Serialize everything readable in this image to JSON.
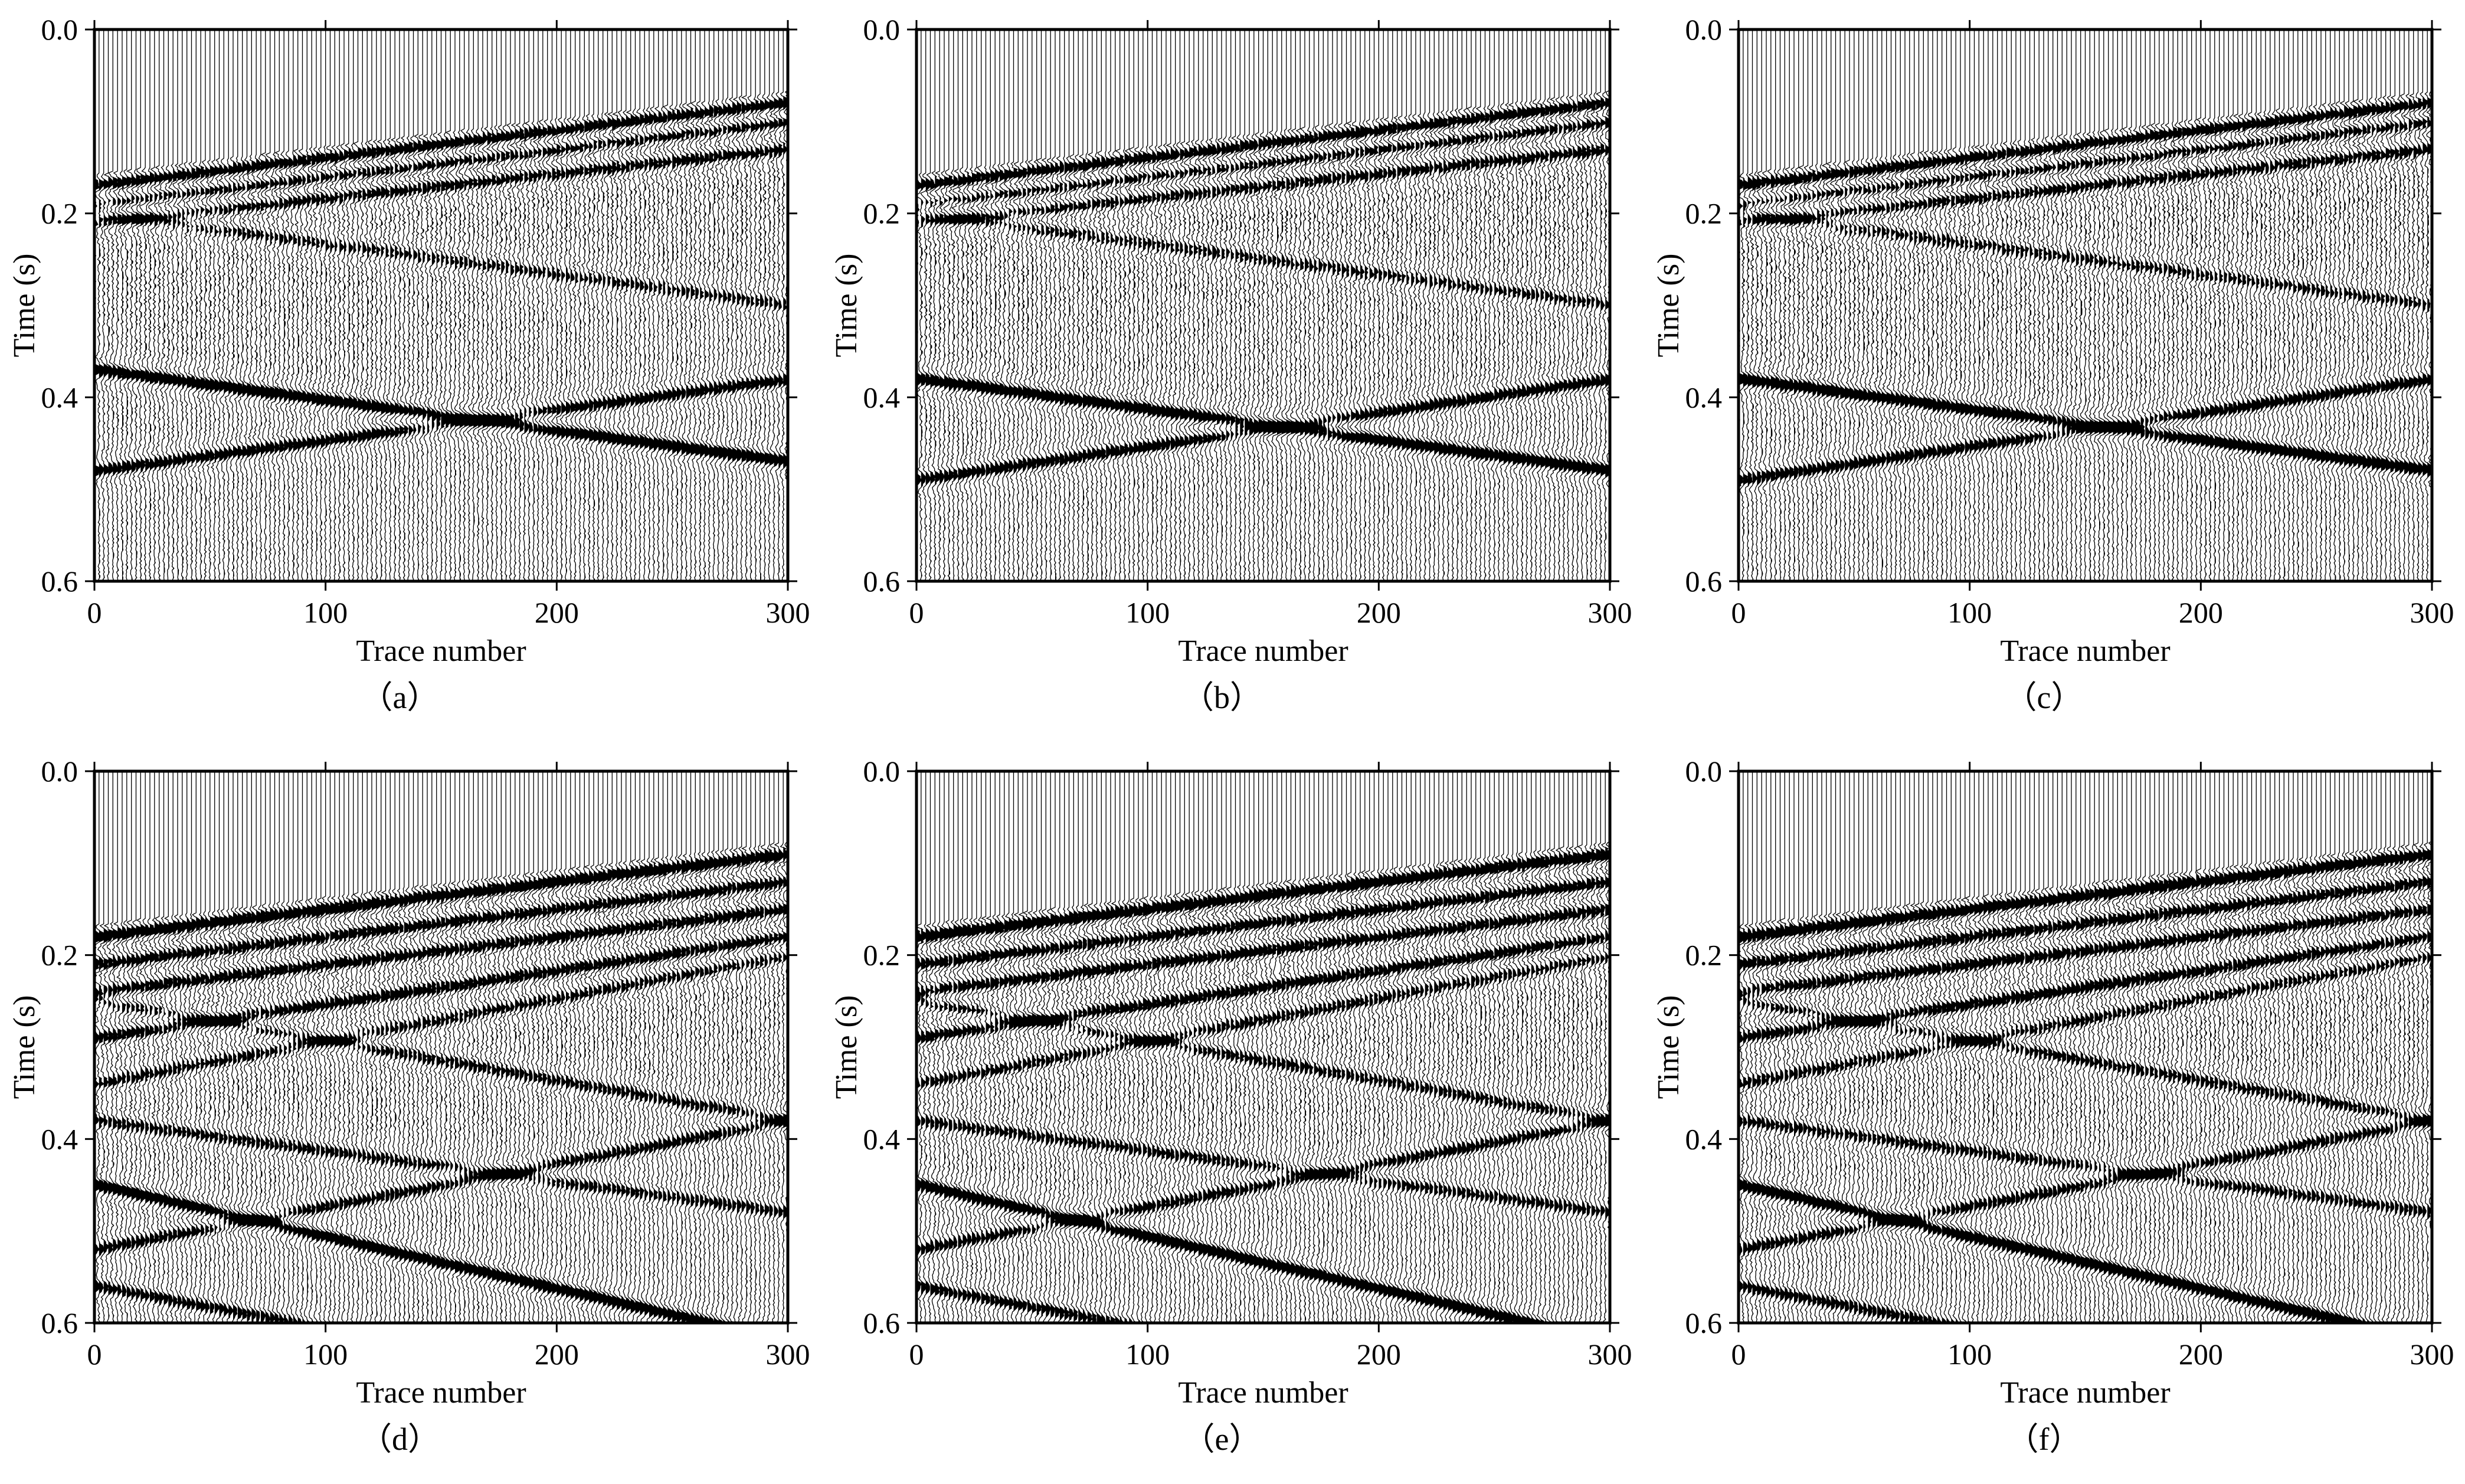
{
  "chart_data": [
    {
      "type": "seismic-wiggle",
      "caption": "（a）",
      "xlabel": "Trace number",
      "ylabel": "Time (s)",
      "xlim": [
        0,
        300
      ],
      "ylim": [
        0.6,
        0.0
      ],
      "xticks": [
        "0",
        "100",
        "200",
        "300"
      ],
      "yticks": [
        "0.0",
        "0.2",
        "0.4",
        "0.6"
      ],
      "num_traces": 301,
      "events": [
        {
          "name": "e1",
          "t0": 0.17,
          "t300": 0.08,
          "strength": 1.0
        },
        {
          "name": "e2",
          "t0": 0.19,
          "t300": 0.1,
          "strength": 0.8
        },
        {
          "name": "e3",
          "t0": 0.21,
          "t300": 0.13,
          "strength": 0.7
        },
        {
          "name": "e4",
          "t0": 0.2,
          "t300": 0.3,
          "strength": 0.5
        },
        {
          "name": "e5",
          "t0": 0.37,
          "t300": 0.47,
          "strength": 1.0
        },
        {
          "name": "e6",
          "t0": 0.48,
          "t300": 0.38,
          "strength": 0.8
        }
      ]
    },
    {
      "type": "seismic-wiggle",
      "caption": "（b）",
      "xlabel": "Trace number",
      "ylabel": "Time (s)",
      "xlim": [
        0,
        300
      ],
      "ylim": [
        0.6,
        0.0
      ],
      "xticks": [
        "0",
        "100",
        "200",
        "300"
      ],
      "yticks": [
        "0.0",
        "0.2",
        "0.4",
        "0.6"
      ],
      "num_traces": 301,
      "events": [
        {
          "name": "e1",
          "t0": 0.17,
          "t300": 0.08,
          "strength": 1.0
        },
        {
          "name": "e2",
          "t0": 0.19,
          "t300": 0.1,
          "strength": 0.8
        },
        {
          "name": "e3",
          "t0": 0.21,
          "t300": 0.13,
          "strength": 0.7
        },
        {
          "name": "e4",
          "t0": 0.2,
          "t300": 0.3,
          "strength": 0.5
        },
        {
          "name": "e5",
          "t0": 0.38,
          "t300": 0.48,
          "strength": 1.0
        },
        {
          "name": "e6",
          "t0": 0.49,
          "t300": 0.38,
          "strength": 0.8
        }
      ]
    },
    {
      "type": "seismic-wiggle",
      "caption": "（c）",
      "xlabel": "Trace number",
      "ylabel": "Time (s)",
      "xlim": [
        0,
        300
      ],
      "ylim": [
        0.6,
        0.0
      ],
      "xticks": [
        "0",
        "100",
        "200",
        "300"
      ],
      "yticks": [
        "0.0",
        "0.2",
        "0.4",
        "0.6"
      ],
      "num_traces": 301,
      "events": [
        {
          "name": "e1",
          "t0": 0.17,
          "t300": 0.08,
          "strength": 1.0
        },
        {
          "name": "e2",
          "t0": 0.19,
          "t300": 0.1,
          "strength": 0.8
        },
        {
          "name": "e3",
          "t0": 0.21,
          "t300": 0.13,
          "strength": 0.7
        },
        {
          "name": "e4",
          "t0": 0.2,
          "t300": 0.3,
          "strength": 0.5
        },
        {
          "name": "e5",
          "t0": 0.38,
          "t300": 0.48,
          "strength": 1.0
        },
        {
          "name": "e6",
          "t0": 0.49,
          "t300": 0.38,
          "strength": 0.8
        }
      ]
    },
    {
      "type": "seismic-wiggle",
      "caption": "（d）",
      "xlabel": "Trace number",
      "ylabel": "Time (s)",
      "xlim": [
        0,
        300
      ],
      "ylim": [
        0.6,
        0.0
      ],
      "xticks": [
        "0",
        "100",
        "200",
        "300"
      ],
      "yticks": [
        "0.0",
        "0.2",
        "0.4",
        "0.6"
      ],
      "num_traces": 301,
      "events": [
        {
          "name": "e1",
          "t0": 0.18,
          "t300": 0.09,
          "strength": 1.0
        },
        {
          "name": "e2",
          "t0": 0.21,
          "t300": 0.12,
          "strength": 0.8
        },
        {
          "name": "e3",
          "t0": 0.24,
          "t300": 0.15,
          "strength": 0.8
        },
        {
          "name": "e4",
          "t0": 0.29,
          "t300": 0.18,
          "strength": 0.8
        },
        {
          "name": "e5",
          "t0": 0.25,
          "t300": 0.38,
          "strength": 0.6
        },
        {
          "name": "e6",
          "t0": 0.34,
          "t300": 0.2,
          "strength": 0.6
        },
        {
          "name": "e7",
          "t0": 0.38,
          "t300": 0.48,
          "strength": 0.6
        },
        {
          "name": "e8",
          "t0": 0.45,
          "t300": 0.62,
          "strength": 1.0
        },
        {
          "name": "e9",
          "t0": 0.52,
          "t300": 0.38,
          "strength": 0.7
        },
        {
          "name": "e10",
          "t0": 0.56,
          "t300": 0.7,
          "strength": 0.7
        }
      ]
    },
    {
      "type": "seismic-wiggle",
      "caption": "（e）",
      "xlabel": "Trace number",
      "ylabel": "Time (s)",
      "xlim": [
        0,
        300
      ],
      "ylim": [
        0.6,
        0.0
      ],
      "xticks": [
        "0",
        "100",
        "200",
        "300"
      ],
      "yticks": [
        "0.0",
        "0.2",
        "0.4",
        "0.6"
      ],
      "num_traces": 301,
      "events": [
        {
          "name": "e1",
          "t0": 0.18,
          "t300": 0.09,
          "strength": 1.0
        },
        {
          "name": "e2",
          "t0": 0.21,
          "t300": 0.12,
          "strength": 0.8
        },
        {
          "name": "e3",
          "t0": 0.24,
          "t300": 0.15,
          "strength": 0.8
        },
        {
          "name": "e4",
          "t0": 0.29,
          "t300": 0.18,
          "strength": 0.8
        },
        {
          "name": "e5",
          "t0": 0.25,
          "t300": 0.38,
          "strength": 0.6
        },
        {
          "name": "e6",
          "t0": 0.34,
          "t300": 0.2,
          "strength": 0.6
        },
        {
          "name": "e7",
          "t0": 0.38,
          "t300": 0.48,
          "strength": 0.6
        },
        {
          "name": "e8",
          "t0": 0.45,
          "t300": 0.62,
          "strength": 1.0
        },
        {
          "name": "e9",
          "t0": 0.52,
          "t300": 0.38,
          "strength": 0.7
        },
        {
          "name": "e10",
          "t0": 0.56,
          "t300": 0.7,
          "strength": 0.7
        }
      ]
    },
    {
      "type": "seismic-wiggle",
      "caption": "（f）",
      "xlabel": "Trace number",
      "ylabel": "Time (s)",
      "xlim": [
        0,
        300
      ],
      "ylim": [
        0.6,
        0.0
      ],
      "xticks": [
        "0",
        "100",
        "200",
        "300"
      ],
      "yticks": [
        "0.0",
        "0.2",
        "0.4",
        "0.6"
      ],
      "num_traces": 301,
      "events": [
        {
          "name": "e1",
          "t0": 0.18,
          "t300": 0.09,
          "strength": 1.0
        },
        {
          "name": "e2",
          "t0": 0.21,
          "t300": 0.12,
          "strength": 0.8
        },
        {
          "name": "e3",
          "t0": 0.24,
          "t300": 0.15,
          "strength": 0.8
        },
        {
          "name": "e4",
          "t0": 0.29,
          "t300": 0.18,
          "strength": 0.8
        },
        {
          "name": "e5",
          "t0": 0.25,
          "t300": 0.38,
          "strength": 0.6
        },
        {
          "name": "e6",
          "t0": 0.34,
          "t300": 0.2,
          "strength": 0.6
        },
        {
          "name": "e7",
          "t0": 0.38,
          "t300": 0.48,
          "strength": 0.6
        },
        {
          "name": "e8",
          "t0": 0.45,
          "t300": 0.62,
          "strength": 1.0
        },
        {
          "name": "e9",
          "t0": 0.52,
          "t300": 0.38,
          "strength": 0.7
        },
        {
          "name": "e10",
          "t0": 0.56,
          "t300": 0.7,
          "strength": 0.7
        }
      ]
    }
  ]
}
